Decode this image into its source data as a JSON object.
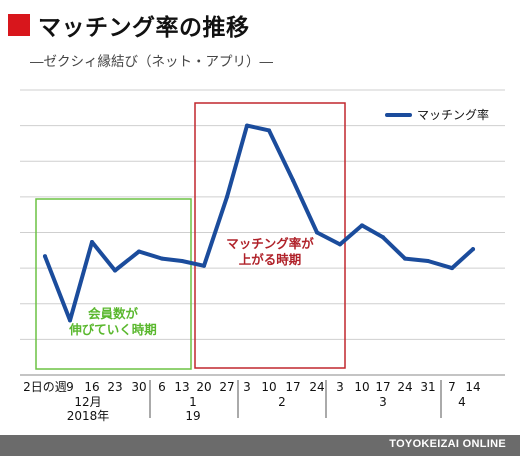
{
  "header": {
    "title": "マッチング率の推移",
    "subtitle": "―ゼクシィ縁結び（ネット・アプリ）―"
  },
  "footer": {
    "credit": "TOYOKEIZAI ONLINE"
  },
  "colors": {
    "line": "#1b4c9c",
    "red_box": "#c1272d",
    "green_box": "#6cc243",
    "title_marker": "#d8161c",
    "grid": "#cfcfcf"
  },
  "chart_data": {
    "type": "line",
    "title": "マッチング率の推移",
    "subtitle": "―ゼクシィ縁結び（ネット・アプリ）―",
    "legend": "マッチング率",
    "legend_position": "top-right",
    "grid": true,
    "y_tick_labels_shown": false,
    "categories": [
      "2日の週",
      "9",
      "16",
      "23",
      "30",
      "6",
      "13",
      "20",
      "27",
      "3",
      "10",
      "17",
      "24",
      "3",
      "10",
      "17",
      "24",
      "31",
      "7",
      "14"
    ],
    "month_labels": [
      {
        "label": "12月",
        "sub": "2018年"
      },
      {
        "label": "1",
        "sub": "19"
      },
      {
        "label": "2",
        "sub": ""
      },
      {
        "label": "3",
        "sub": ""
      },
      {
        "label": "4",
        "sub": ""
      }
    ],
    "series": [
      {
        "name": "マッチング率",
        "values": [
          5.0,
          2.3,
          5.6,
          4.4,
          5.2,
          4.9,
          4.8,
          4.6,
          7.5,
          10.5,
          10.3,
          8.2,
          6.0,
          5.5,
          6.3,
          5.8,
          4.9,
          4.8,
          4.5,
          5.3
        ]
      }
    ],
    "ylim": [
      0,
      12
    ],
    "annotations": [
      {
        "text": "マッチング率が\n上がる時期",
        "range": [
          "20",
          "3"
        ],
        "color": "red"
      },
      {
        "text": "会員数が\n伸びていく時期",
        "range": [
          "2日の週",
          "13"
        ],
        "color": "green"
      }
    ]
  }
}
